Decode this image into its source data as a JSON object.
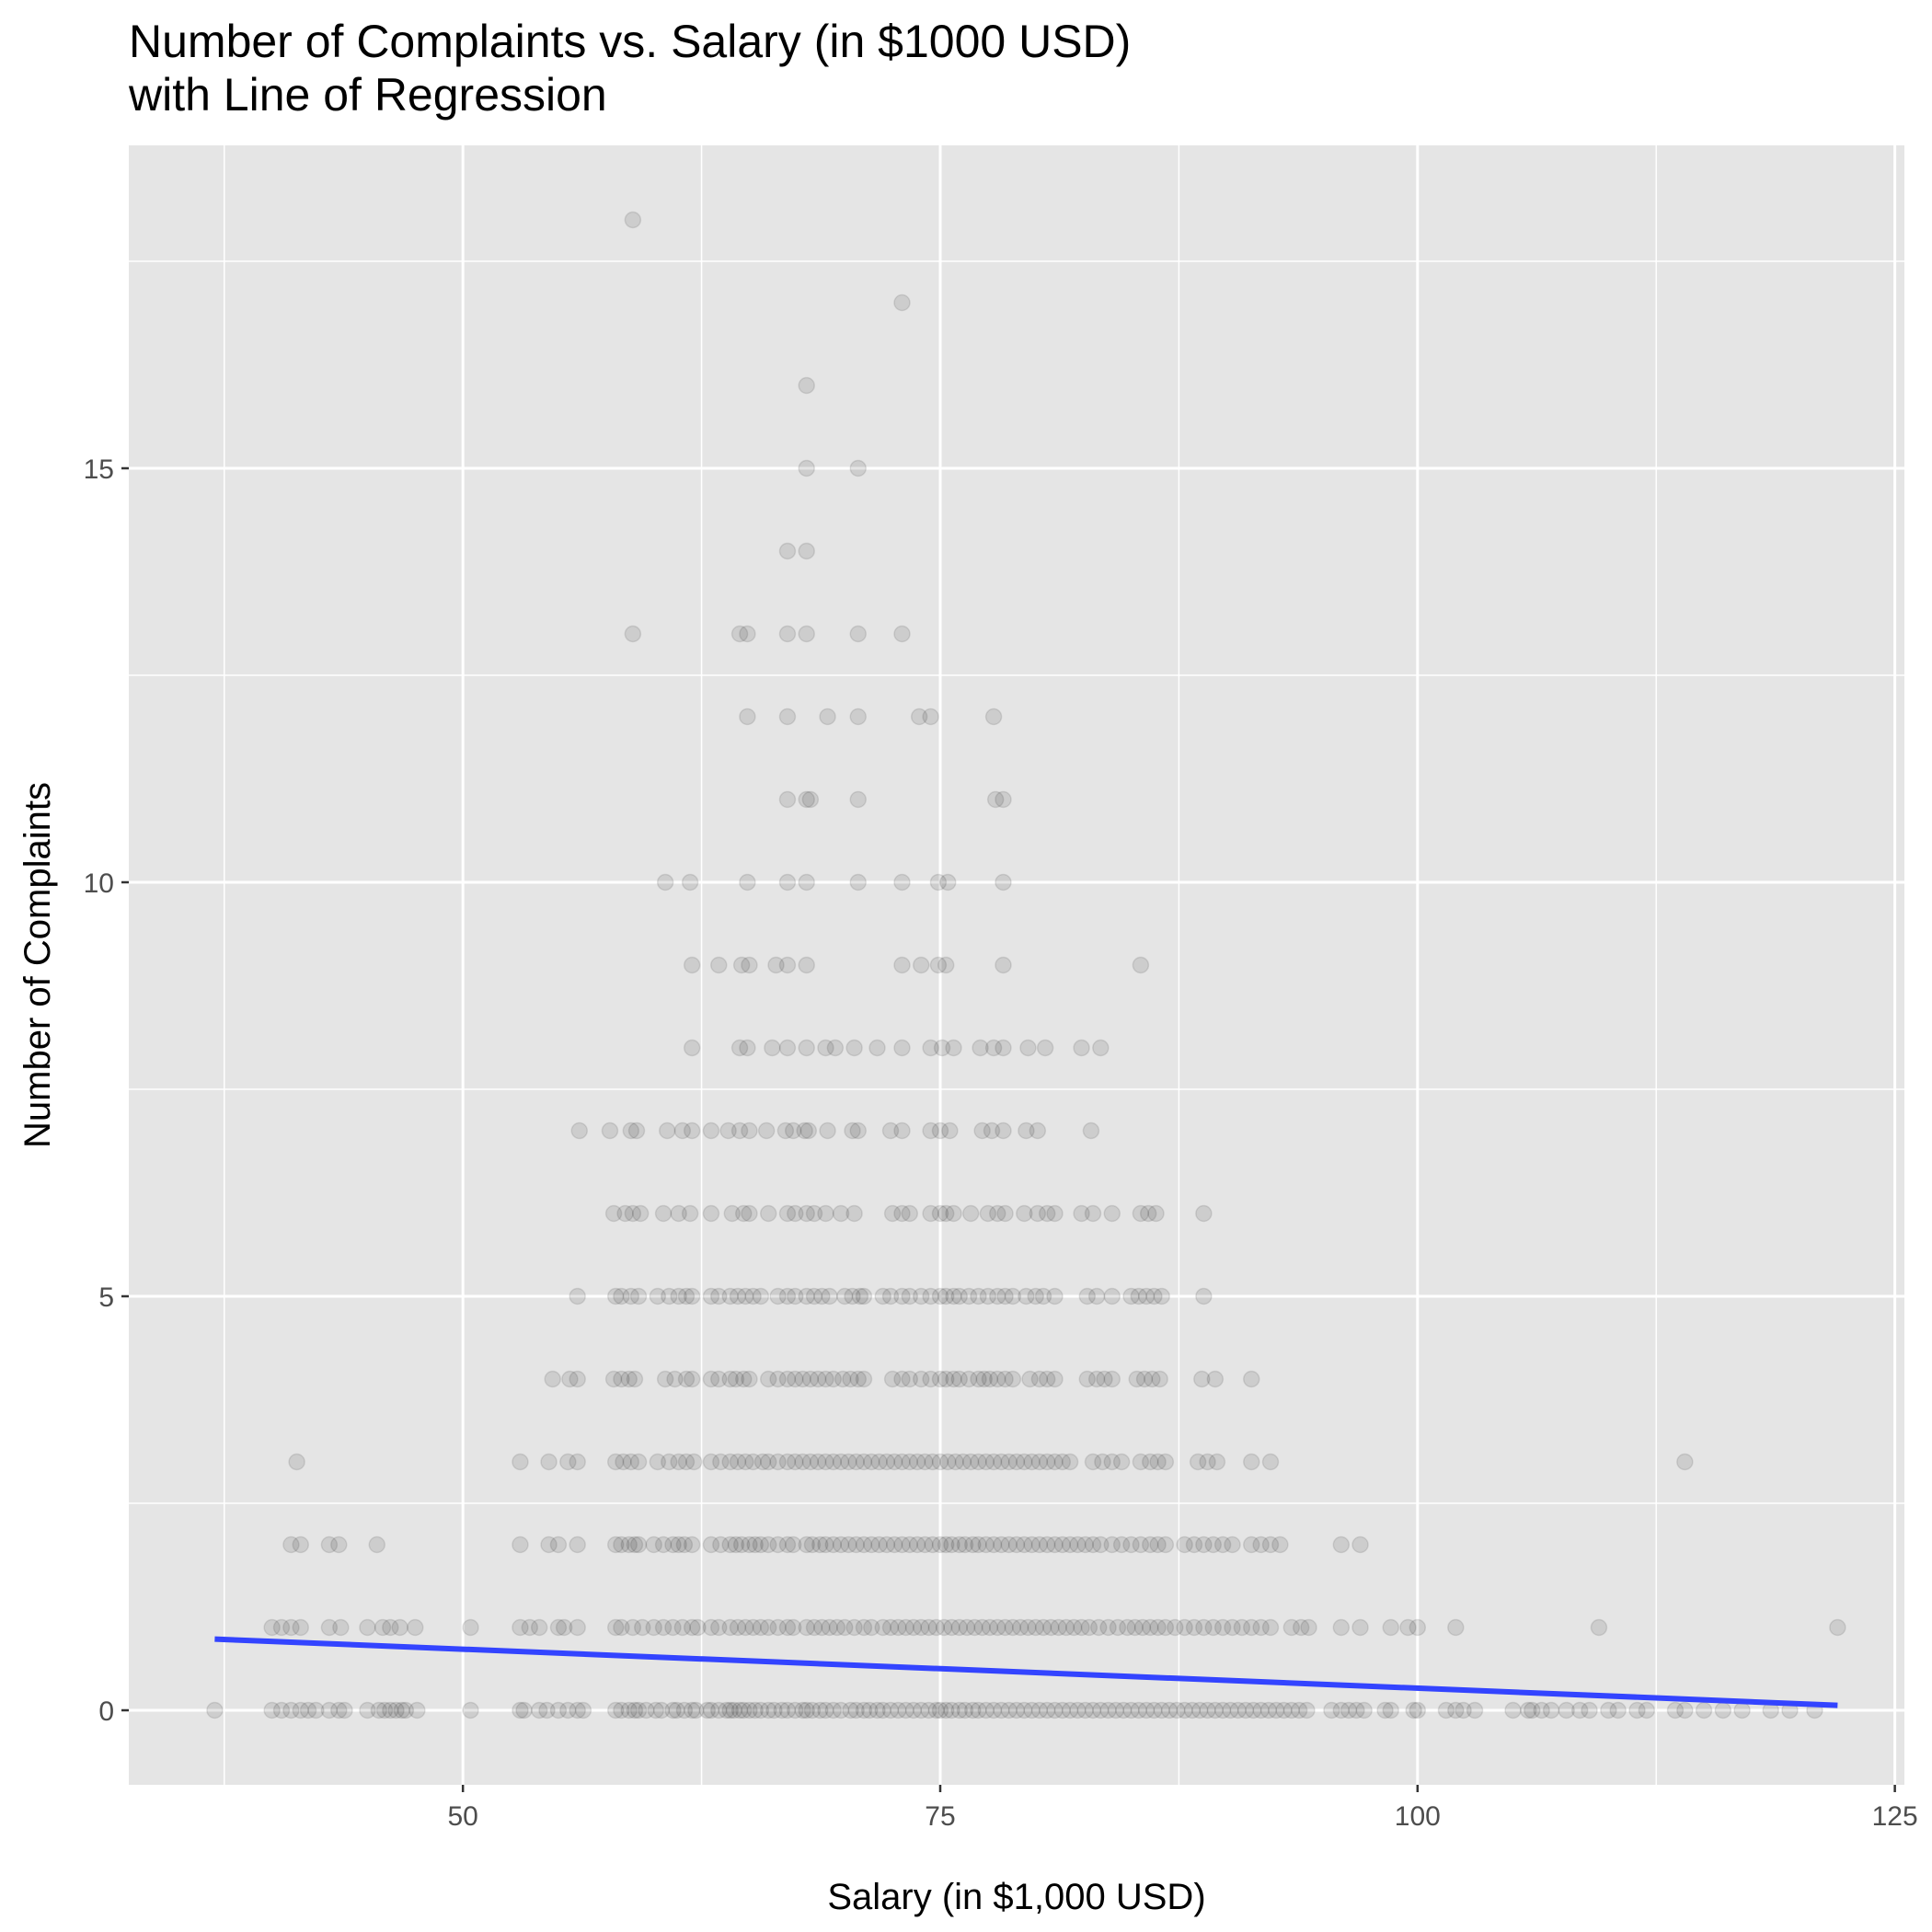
{
  "colors": {
    "panel": "#e5e5e5",
    "grid": "#ffffff",
    "point": "#000000",
    "regression": "#3344ff",
    "tick": "#333333",
    "tick_label": "#4d4d4d"
  },
  "chart_data": {
    "type": "scatter",
    "title": "Number of Complaints vs. Salary (in $1000 USD)",
    "subtitle": "with Line of Regression",
    "xlabel": "Salary (in $1,000 USD)",
    "ylabel": "Number of Complaints",
    "xlim": [
      32.5,
      125.5
    ],
    "ylim": [
      -0.9,
      18.9
    ],
    "x_ticks": [
      50,
      75,
      100,
      125
    ],
    "y_ticks": [
      0,
      5,
      10,
      15
    ],
    "x_minor_ticks": [
      37.5,
      62.5,
      87.5,
      112.5
    ],
    "y_minor_ticks": [
      2.5,
      7.5,
      12.5,
      17.5
    ],
    "grid": true,
    "point_alpha": 0.1,
    "regression_line": {
      "x": [
        37,
        122
      ],
      "y": [
        0.86,
        0.06
      ]
    },
    "points": {
      "y0": [
        37,
        40,
        40.5,
        41,
        41.5,
        41.9,
        42.3,
        43,
        43.5,
        43.8,
        45,
        45.6,
        45.9,
        46.2,
        46.5,
        46.8,
        47,
        47.6,
        50.4,
        53,
        53.2,
        54,
        54.4,
        55,
        55.5,
        56,
        56.3,
        58,
        58.3,
        58.7,
        59,
        59.2,
        59.6,
        60.1,
        60.4,
        61,
        61.2,
        61.6,
        62,
        62.2,
        62.8,
        63,
        63.4,
        63.8,
        64,
        64.2,
        64.5,
        64.7,
        65,
        65.3,
        65.6,
        66,
        66.3,
        66.7,
        67,
        67.4,
        67.8,
        68,
        68.3,
        68.7,
        69,
        69.4,
        69.8,
        70.3,
        70.6,
        71,
        71.3,
        71.7,
        72,
        72.4,
        72.8,
        73.2,
        73.6,
        74,
        74.4,
        74.8,
        75,
        75.3,
        75.6,
        76,
        76.3,
        76.7,
        77,
        77.4,
        77.8,
        78.2,
        78.6,
        79,
        79.4,
        79.8,
        80.2,
        80.6,
        81,
        81.4,
        81.8,
        82.2,
        82.6,
        83,
        83.4,
        83.8,
        84.2,
        84.6,
        85,
        85.4,
        85.8,
        86.2,
        86.6,
        87,
        87.4,
        87.8,
        88.2,
        88.6,
        89,
        89.4,
        89.8,
        90.2,
        90.6,
        91,
        91.4,
        91.8,
        92.2,
        92.6,
        93,
        93.4,
        93.8,
        94.2,
        95.5,
        96,
        96.4,
        96.8,
        97.2,
        98.3,
        98.6,
        99.8,
        100,
        101.5,
        102,
        102.4,
        103,
        105,
        105.8,
        106,
        106.5,
        107,
        107.8,
        108.5,
        109,
        110,
        110.5,
        111.5,
        112,
        113.5,
        114,
        115,
        116,
        117,
        118.5,
        119.5,
        120.8
      ],
      "y1": [
        40,
        40.5,
        41,
        41.5,
        43,
        43.6,
        45,
        45.8,
        46.2,
        46.7,
        47.5,
        50.4,
        53,
        53.5,
        54,
        55,
        55.3,
        56,
        58,
        58.3,
        58.9,
        59.4,
        60,
        60.5,
        61,
        61.5,
        62,
        62.3,
        63,
        63.4,
        64,
        64.4,
        64.8,
        65.2,
        65.6,
        66,
        66.5,
        67,
        67.3,
        68,
        68.4,
        68.8,
        69.2,
        69.6,
        70,
        70.5,
        71,
        71.4,
        72,
        72.4,
        72.8,
        73.2,
        73.6,
        74,
        74.4,
        74.8,
        75.2,
        75.6,
        76,
        76.4,
        76.8,
        77.2,
        77.6,
        78,
        78.4,
        78.8,
        79.2,
        79.6,
        80,
        80.4,
        80.8,
        81.2,
        81.6,
        82,
        82.4,
        82.8,
        83.3,
        83.8,
        84.3,
        84.8,
        85.2,
        85.6,
        86,
        86.4,
        86.8,
        87.3,
        87.8,
        88.3,
        88.8,
        89.3,
        89.8,
        90.3,
        90.8,
        91.3,
        91.8,
        92.3,
        93.4,
        93.9,
        94.3,
        96,
        97,
        98.6,
        99.5,
        100,
        102,
        109.5,
        122
      ],
      "y2": [
        41,
        41.5,
        43,
        43.5,
        45.5,
        53,
        54.5,
        55,
        56,
        58,
        58.3,
        58.7,
        59,
        59.2,
        60,
        60.5,
        61,
        61.3,
        61.6,
        62,
        63,
        63.5,
        64,
        64.3,
        64.6,
        65,
        65.3,
        65.6,
        66,
        66.5,
        67,
        67.3,
        68,
        68.3,
        68.7,
        69,
        69.4,
        69.8,
        70.2,
        70.6,
        71,
        71.4,
        71.8,
        72.2,
        72.6,
        73,
        73.4,
        73.8,
        74.2,
        74.6,
        75,
        75.3,
        75.6,
        76,
        76.3,
        76.7,
        77,
        77.4,
        77.8,
        78.2,
        78.6,
        79,
        79.4,
        79.8,
        80.2,
        80.6,
        81,
        81.4,
        81.8,
        82.2,
        82.6,
        83,
        83.4,
        84,
        84.5,
        85,
        85.5,
        86,
        86.4,
        86.8,
        87.8,
        88.3,
        88.8,
        89.3,
        89.8,
        90.3,
        91.3,
        91.8,
        92.3,
        92.8,
        96,
        97
      ],
      "y3": [
        41.3,
        53,
        54.5,
        55.5,
        56,
        58,
        58.4,
        58.8,
        59.2,
        60.2,
        60.8,
        61.3,
        61.7,
        62.1,
        63,
        63.5,
        64,
        64.4,
        64.8,
        65.2,
        65.7,
        66,
        66.5,
        67,
        67.4,
        67.8,
        68.2,
        68.6,
        69,
        69.4,
        69.8,
        70.2,
        70.6,
        71,
        71.4,
        71.8,
        72.2,
        72.6,
        73,
        73.4,
        73.8,
        74.2,
        74.6,
        75,
        75.4,
        75.8,
        76.2,
        76.6,
        77,
        77.4,
        77.8,
        78.2,
        78.6,
        79,
        79.4,
        79.8,
        80.2,
        80.6,
        81,
        81.4,
        81.8,
        83,
        83.5,
        84,
        84.5,
        85.5,
        86,
        86.4,
        86.8,
        88.5,
        89,
        89.5,
        91.3,
        92.3,
        114
      ],
      "y4": [
        54.7,
        55.6,
        56,
        57.9,
        58.3,
        58.7,
        59,
        60.6,
        61.1,
        61.7,
        62,
        63,
        63.4,
        64,
        64.3,
        64.7,
        65,
        66,
        66.5,
        67,
        67.4,
        67.8,
        68.2,
        68.6,
        69,
        69.4,
        69.9,
        70.3,
        70.7,
        71,
        72.5,
        73,
        73.4,
        74,
        74.5,
        75,
        75.3,
        75.7,
        76,
        76.5,
        77,
        77.3,
        77.6,
        78,
        78.4,
        78.8,
        79.7,
        80.2,
        80.6,
        81,
        82.7,
        83.2,
        83.6,
        84,
        85.3,
        85.7,
        86.1,
        86.5,
        88.7,
        89.4,
        91.3
      ],
      "y5": [
        56,
        58,
        58.3,
        58.8,
        59.2,
        60.2,
        60.8,
        61.3,
        61.7,
        62,
        63,
        63.4,
        64,
        64.4,
        64.8,
        65.2,
        65.6,
        66.5,
        67,
        67.4,
        68,
        68.4,
        68.8,
        69.2,
        70,
        70.4,
        70.8,
        71,
        72,
        72.4,
        73,
        73.4,
        74,
        74.5,
        75,
        75.3,
        75.7,
        76,
        76.5,
        77,
        77.5,
        78,
        78.4,
        78.8,
        79.5,
        80,
        80.4,
        81,
        82.7,
        83.2,
        84,
        85,
        85.4,
        85.8,
        86.2,
        86.6,
        88.8
      ],
      "y6": [
        57.9,
        58.5,
        58.9,
        59.3,
        60.5,
        61.3,
        61.9,
        63,
        64.1,
        64.7,
        65,
        66,
        67,
        67.4,
        68,
        68.4,
        69,
        69.8,
        70.5,
        72.5,
        73,
        73.4,
        74.5,
        75,
        75.3,
        75.7,
        76.6,
        77.5,
        78,
        78.4,
        79.4,
        80.1,
        80.6,
        81,
        82.4,
        83,
        84,
        85.5,
        85.9,
        86.3,
        88.8
      ],
      "y7": [
        56.1,
        57.7,
        58.8,
        59.1,
        60.7,
        61.5,
        62,
        63,
        63.9,
        64.5,
        65,
        65.9,
        66.9,
        67.3,
        67.9,
        68.1,
        69.1,
        70.4,
        70.7,
        72.4,
        73,
        74.5,
        75,
        75.5,
        77.2,
        77.7,
        78.3,
        79.5,
        80.1,
        82.9
      ],
      "y8": [
        62,
        64.5,
        64.9,
        66.2,
        67,
        68,
        69,
        69.5,
        70.5,
        71.7,
        73,
        74.5,
        75.1,
        75.7,
        77.1,
        77.8,
        78.3,
        79.6,
        80.5,
        82.4,
        83.4
      ],
      "y9": [
        62,
        63.4,
        64.6,
        65,
        66.4,
        67,
        68,
        73,
        74,
        74.9,
        75.3,
        78.3,
        85.5
      ],
      "y10": [
        60.6,
        61.9,
        64.9,
        67,
        68,
        70.7,
        73,
        74.9,
        75.4,
        78.3
      ],
      "y11": [
        67,
        68,
        68.2,
        70.7,
        77.9,
        78.3
      ],
      "y12": [
        64.9,
        67,
        69.1,
        70.7,
        73.9,
        74.5,
        77.8
      ],
      "y13": [
        58.9,
        64.5,
        64.9,
        67,
        68,
        70.7,
        73
      ],
      "y14": [
        67,
        68
      ],
      "y15": [
        68,
        70.7
      ],
      "y16": [
        68
      ],
      "y17": [
        73
      ],
      "y18": [
        58.9
      ]
    }
  }
}
